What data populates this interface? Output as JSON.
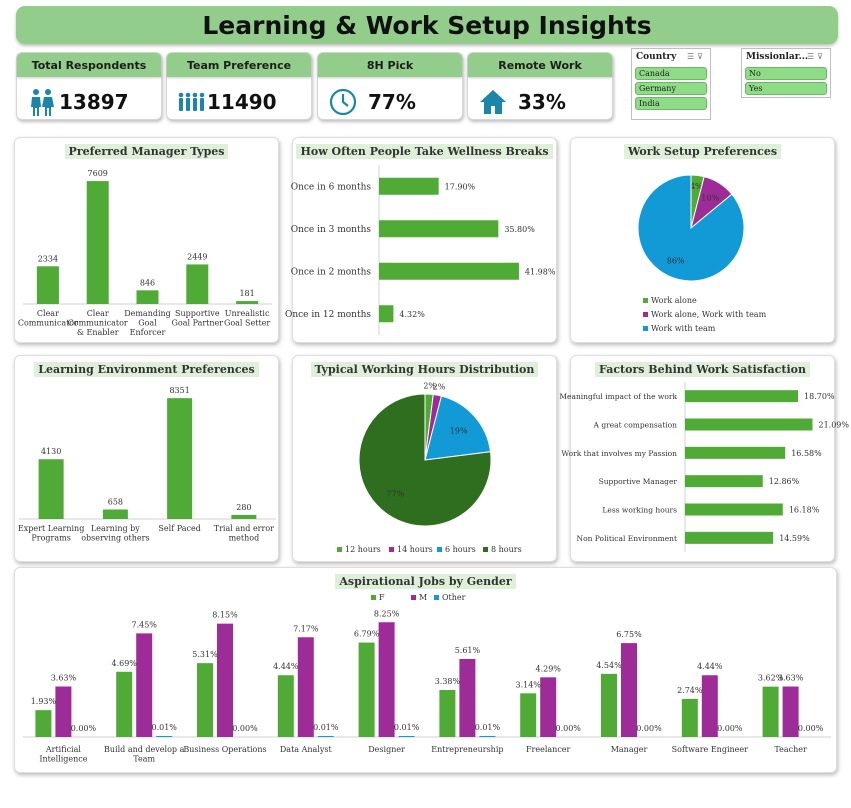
{
  "title": "Learning & Work Setup Insights",
  "kpis": [
    {
      "label": "Total Respondents",
      "value": "13897",
      "icon": "people-pair-icon"
    },
    {
      "label": "Team Preference",
      "value": "11490",
      "icon": "team-group-icon"
    },
    {
      "label": "8H Pick",
      "value": "77%",
      "icon": "clock-icon"
    },
    {
      "label": "Remote Work",
      "value": "33%",
      "icon": "home-icon"
    }
  ],
  "slicers": {
    "country": {
      "title": "Country",
      "items": [
        "Canada",
        "Germany",
        "India"
      ]
    },
    "mission": {
      "title": "Missionlar...",
      "items": [
        "No",
        "Yes"
      ]
    }
  },
  "colors": {
    "green": "#4fab35",
    "purple": "#9d2c98",
    "blue": "#129ad7",
    "dark_green": "#2e6e1e",
    "header": "#92cd8b"
  },
  "chart_data": [
    {
      "id": "manager",
      "type": "bar",
      "title": "Preferred Manager Types",
      "categories": [
        "Clear Communicator",
        "Clear Communicator & Enabler",
        "Demanding Goal Enforcer",
        "Supportive Goal Partner",
        "Unrealistic Goal Setter"
      ],
      "values": [
        2334,
        7609,
        846,
        2449,
        181
      ],
      "ylim": [
        0,
        7800
      ]
    },
    {
      "id": "wellness",
      "type": "bar",
      "orientation": "horizontal",
      "title": "How Often People Take Wellness Breaks",
      "categories": [
        "Once in 6 months",
        "Once in 3 months",
        "Once in 2 months",
        "Once in 12 months"
      ],
      "values": [
        17.9,
        35.8,
        41.98,
        4.32
      ],
      "value_labels": [
        "17.90%",
        "35.80%",
        "41.98%",
        "4.32%"
      ],
      "xlim": [
        0,
        45
      ]
    },
    {
      "id": "worksetup",
      "type": "pie",
      "title": "Work Setup Preferences",
      "categories": [
        "Work alone",
        "Work alone, Work with team",
        "Work with team"
      ],
      "values": [
        4,
        10,
        86
      ],
      "value_labels": [
        "4%",
        "10%",
        "86%"
      ],
      "colors": [
        "#4fab35",
        "#9d2c98",
        "#129ad7"
      ],
      "legend": "bottom"
    },
    {
      "id": "learning",
      "type": "bar",
      "title": "Learning Environment Preferences",
      "categories": [
        "Expert Learning Programs",
        "Learning by observing others",
        "Self Paced",
        "Trial and error method"
      ],
      "values": [
        4130,
        658,
        8351,
        280
      ],
      "ylim": [
        0,
        8500
      ]
    },
    {
      "id": "hours",
      "type": "pie",
      "title": "Typical Working Hours Distribution",
      "categories": [
        "12 hours",
        "14 hours",
        "6 hours",
        "8 hours"
      ],
      "values": [
        2,
        2,
        19,
        77
      ],
      "value_labels": [
        "2%",
        "2%",
        "19%",
        "77%"
      ],
      "colors": [
        "#4fab35",
        "#9d2c98",
        "#129ad7",
        "#2e6e1e"
      ],
      "legend": "bottom"
    },
    {
      "id": "satisfaction",
      "type": "bar",
      "orientation": "horizontal",
      "title": "Factors Behind Work Satisfaction",
      "categories": [
        "Meaningful impact of the work",
        "A great compensation",
        "Work that involves my Passion",
        "Supportive Manager",
        "Less working hours",
        "Non Political Environment"
      ],
      "values": [
        18.7,
        21.09,
        16.58,
        12.86,
        16.18,
        14.59
      ],
      "value_labels": [
        "18.70%",
        "21.09%",
        "16.58%",
        "12.86%",
        "16.18%",
        "14.59%"
      ],
      "xlim": [
        0,
        22
      ]
    },
    {
      "id": "jobs",
      "type": "bar",
      "title": "Aspirational Jobs by Gender",
      "categories": [
        "Artificial Intelligence",
        "Build and develop a Team",
        "Business Operations",
        "Data Analyst",
        "Designer",
        "Entrepreneurship",
        "Freelancer",
        "Manager",
        "Software Engineer",
        "Teacher"
      ],
      "series": [
        {
          "name": "F",
          "values": [
            1.93,
            4.69,
            5.31,
            4.44,
            6.79,
            3.38,
            3.14,
            4.54,
            2.74,
            3.62
          ],
          "labels": [
            "1.93%",
            "4.69%",
            "5.31%",
            "4.44%",
            "6.79%",
            "3.38%",
            "3.14%",
            "4.54%",
            "2.74%",
            "3.62%"
          ],
          "color": "#4fab35"
        },
        {
          "name": "M",
          "values": [
            3.63,
            7.45,
            8.15,
            7.17,
            8.25,
            5.61,
            4.29,
            6.75,
            4.44,
            3.63
          ],
          "labels": [
            "3.63%",
            "7.45%",
            "8.15%",
            "7.17%",
            "8.25%",
            "5.61%",
            "4.29%",
            "6.75%",
            "4.44%",
            "3.63%"
          ],
          "color": "#9d2c98"
        },
        {
          "name": "Other",
          "values": [
            0.0,
            0.01,
            0.0,
            0.01,
            0.01,
            0.01,
            0.0,
            0.0,
            0.0,
            0.0
          ],
          "labels": [
            "0.00%",
            "0.01%",
            "0.00%",
            "0.01%",
            "0.01%",
            "0.01%",
            "0.00%",
            "0.00%",
            "0.00%",
            "0.00%"
          ],
          "color": "#129ad7"
        }
      ],
      "ylim": [
        0,
        8.7
      ],
      "legend": "top"
    }
  ]
}
